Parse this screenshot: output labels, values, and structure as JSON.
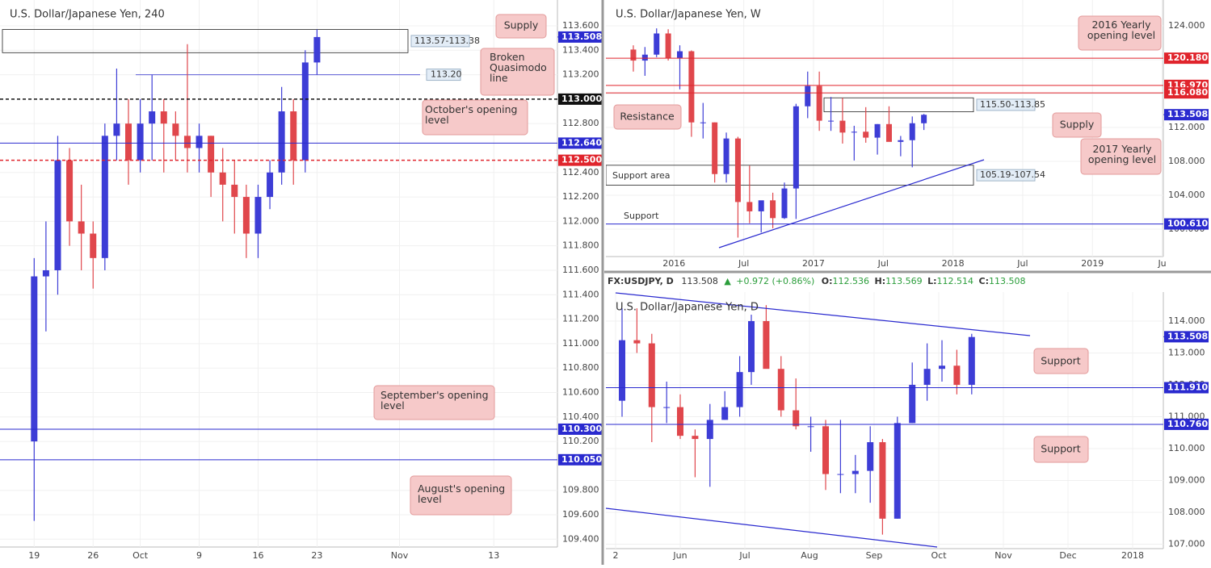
{
  "chart_data": [
    {
      "type": "candlestick",
      "title": "U.S. Dollar/Japanese Yen, 240",
      "xlim": [
        -2.9,
        44.4
      ],
      "xticks": [
        {
          "value": 0,
          "label": "19"
        },
        {
          "value": 5,
          "label": "26"
        },
        {
          "value": 9,
          "label": "Oct"
        },
        {
          "value": 14,
          "label": "9"
        },
        {
          "value": 19,
          "label": "16"
        },
        {
          "value": 24,
          "label": "23"
        },
        {
          "value": 31,
          "label": "Nov"
        },
        {
          "value": 39,
          "label": "13"
        }
      ],
      "ylim": [
        109.336,
        113.811
      ],
      "yticks": [
        {
          "value": 109.4,
          "label": "109.400"
        },
        {
          "value": 109.6,
          "label": "109.600"
        },
        {
          "value": 109.8,
          "label": "109.800"
        },
        {
          "value": 110.2,
          "label": "110.200"
        },
        {
          "value": 110.4,
          "label": "110.400"
        },
        {
          "value": 110.6,
          "label": "110.600"
        },
        {
          "value": 110.8,
          "label": "110.800"
        },
        {
          "value": 111,
          "label": "111.000"
        },
        {
          "value": 111.2,
          "label": "111.200"
        },
        {
          "value": 111.4,
          "label": "111.400"
        },
        {
          "value": 111.6,
          "label": "111.600"
        },
        {
          "value": 111.8,
          "label": "111.800"
        },
        {
          "value": 112,
          "label": "112.000"
        },
        {
          "value": 112.2,
          "label": "112.200"
        },
        {
          "value": 112.4,
          "label": "112.400"
        },
        {
          "value": 112.8,
          "label": "112.800"
        },
        {
          "value": 113.2,
          "label": "113.200"
        },
        {
          "value": 113.4,
          "label": "113.400"
        },
        {
          "value": 113.6,
          "label": "113.600"
        }
      ],
      "grid": true,
      "up_color": "#3d3dd6",
      "down_color": "#e0474c",
      "candles": {
        "x": [
          0,
          1,
          2,
          3,
          4,
          5,
          6,
          7,
          8,
          9,
          10,
          11,
          12,
          13,
          14,
          15,
          16,
          17,
          18,
          19,
          20,
          21,
          22,
          23,
          24
        ],
        "open": [
          110.2,
          111.55,
          111.6,
          112.5,
          112.0,
          111.9,
          111.7,
          112.7,
          112.8,
          112.5,
          112.8,
          112.9,
          112.8,
          112.7,
          112.6,
          112.7,
          112.4,
          112.3,
          112.2,
          111.9,
          112.2,
          112.4,
          112.9,
          112.5,
          113.3
        ],
        "high": [
          111.7,
          112.0,
          112.7,
          112.6,
          112.3,
          112.0,
          112.8,
          113.25,
          113.0,
          113.0,
          113.2,
          113.0,
          112.9,
          113.45,
          112.8,
          112.7,
          112.6,
          112.5,
          112.3,
          112.3,
          112.5,
          113.1,
          113.0,
          113.4,
          113.57
        ],
        "low": [
          109.55,
          111.1,
          111.4,
          111.8,
          111.6,
          111.45,
          111.6,
          112.5,
          112.3,
          112.4,
          112.5,
          112.4,
          112.5,
          112.4,
          112.4,
          112.2,
          112.0,
          111.9,
          111.7,
          111.7,
          112.1,
          112.3,
          112.3,
          112.4,
          113.2
        ],
        "close": [
          111.55,
          111.6,
          112.5,
          112.0,
          111.9,
          111.7,
          112.7,
          112.8,
          112.5,
          112.8,
          112.9,
          112.8,
          112.7,
          112.6,
          112.7,
          112.4,
          112.3,
          112.2,
          111.9,
          112.2,
          112.4,
          112.9,
          112.5,
          113.3,
          113.508
        ]
      },
      "levels": [
        {
          "value": 113,
          "label": "113.000",
          "color": "#111111",
          "dashed": true
        },
        {
          "value": 112.64,
          "label": "112.640",
          "color": "#2a2acf",
          "dashed": false
        },
        {
          "value": 112.5,
          "label": "112.500",
          "color": "#e0242c",
          "dashed": true
        },
        {
          "value": 110.3,
          "label": "110.300",
          "color": "#2a2acf",
          "dashed": false
        },
        {
          "value": 110.05,
          "label": "110.050",
          "color": "#2a2acf",
          "dashed": false
        }
      ],
      "current": {
        "value": 113.508,
        "label": "113.508",
        "color": "#2a2acf"
      },
      "zones": [
        {
          "low": 113.38,
          "high": 113.57,
          "label": "113.57-113.38"
        }
      ],
      "segments": [
        {
          "value": 113.2,
          "label": "113.20",
          "color": "#5b5bd6"
        }
      ],
      "annotations": [
        "Supply",
        "Broken Quasimodo line",
        "October's opening level",
        "September's opening level",
        "August's opening level"
      ]
    },
    {
      "type": "candlestick",
      "title": "U.S. Dollar/Japanese Yen, W",
      "xlim": [
        -5.86,
        42.1
      ],
      "xticks": [
        {
          "value": 0,
          "label": "2016"
        },
        {
          "value": 6,
          "label": "Jul"
        },
        {
          "value": 12,
          "label": "2017"
        },
        {
          "value": 18,
          "label": "Jul"
        },
        {
          "value": 24,
          "label": "2018"
        },
        {
          "value": 30,
          "label": "Jul"
        },
        {
          "value": 36,
          "label": "2019"
        },
        {
          "value": 42,
          "label": "Ju"
        }
      ],
      "ylim": [
        96.76,
        127.05
      ],
      "yticks": [
        {
          "value": 100,
          "label": "100.000"
        },
        {
          "value": 104,
          "label": "104.000"
        },
        {
          "value": 108,
          "label": "108.000"
        },
        {
          "value": 112,
          "label": "112.000"
        },
        {
          "value": 116,
          "label": "116.000"
        },
        {
          "value": 120,
          "label": "120.000"
        },
        {
          "value": 124,
          "label": "124.000"
        }
      ],
      "grid": true,
      "up_color": "#3d3dd6",
      "down_color": "#e0474c",
      "candles": {
        "x": [
          -3.5,
          -2.5,
          -1.5,
          -0.5,
          0.5,
          1.5,
          2.5,
          3.5,
          4.5,
          5.5,
          6.5,
          7.5,
          8.5,
          9.5,
          10.5,
          11.5,
          12.5,
          13.5,
          14.5,
          15.5,
          16.5,
          17.5,
          18.5,
          19.5,
          20.5,
          21.5
        ],
        "open": [
          121.2,
          119.9,
          120.6,
          123.1,
          120.2,
          121.0,
          112.6,
          112.6,
          106.5,
          110.7,
          103.2,
          102.1,
          103.4,
          101.3,
          104.8,
          114.5,
          116.9,
          112.8,
          112.8,
          111.4,
          111.5,
          110.8,
          112.4,
          110.3,
          110.5,
          112.5
        ],
        "high": [
          121.7,
          121.5,
          123.7,
          123.6,
          121.7,
          121.1,
          114.9,
          112.6,
          111.4,
          110.9,
          107.5,
          102.8,
          104.3,
          105.5,
          114.8,
          118.6,
          118.6,
          115.6,
          115.5,
          112.2,
          114.4,
          112.4,
          114.5,
          111.0,
          113.3,
          113.6
        ],
        "low": [
          118.6,
          118.1,
          120.3,
          119.9,
          116.5,
          110.9,
          110.7,
          105.5,
          105.5,
          99.0,
          100.7,
          99.6,
          100.1,
          101.2,
          101.2,
          113.1,
          111.6,
          111.6,
          110.1,
          108.1,
          110.2,
          108.8,
          110.6,
          108.6,
          107.3,
          111.7
        ],
        "close": [
          119.9,
          120.6,
          123.1,
          120.2,
          121.0,
          112.6,
          112.6,
          106.5,
          110.7,
          103.2,
          102.1,
          103.4,
          101.3,
          104.8,
          114.5,
          116.9,
          112.8,
          112.8,
          111.4,
          111.5,
          110.8,
          112.4,
          110.3,
          110.5,
          112.5,
          113.5
        ]
      },
      "levels": [
        {
          "value": 120.18,
          "label": "120.180",
          "color": "#e0242c",
          "dashed": false
        },
        {
          "value": 116.97,
          "label": "116.970",
          "color": "#e0242c",
          "dashed": false
        },
        {
          "value": 116.08,
          "label": "116.080",
          "color": "#e0242c",
          "dashed": false
        },
        {
          "value": 100.61,
          "label": "100.610",
          "color": "#2a2acf",
          "dashed": false
        }
      ],
      "current": {
        "value": 113.508,
        "label": "113.508",
        "color": "#2a2acf"
      },
      "zones": [
        {
          "low": 113.85,
          "high": 115.5,
          "label": "115.50-113.85"
        },
        {
          "low": 105.19,
          "high": 107.54,
          "label": "105.19-107.54"
        }
      ],
      "segments": [],
      "annotations": [
        "2016 Yearly opening level",
        "Resistance",
        "Supply",
        "2017 Yearly opening level",
        "Support area",
        "Support"
      ]
    },
    {
      "type": "candlestick",
      "title": "U.S. Dollar/Japanese Yen, D",
      "header": {
        "symbol": "FX:USDJPY, D",
        "price": "113.508",
        "arrow": "▲",
        "change": "+0.972 (+0.86%)",
        "o": "O:",
        "open": "112.536",
        "h": "H:",
        "high": "113.569",
        "l": "L:",
        "low": "112.514",
        "c": "C:",
        "close": "113.508"
      },
      "xlim": [
        -0.15,
        8.475
      ],
      "xticks": [
        {
          "value": 0,
          "label": "2"
        },
        {
          "value": 1,
          "label": "Jun"
        },
        {
          "value": 2,
          "label": "Jul"
        },
        {
          "value": 3,
          "label": "Aug"
        },
        {
          "value": 4,
          "label": "Sep"
        },
        {
          "value": 5,
          "label": "Oct"
        },
        {
          "value": 6,
          "label": "Nov"
        },
        {
          "value": 7,
          "label": "Dec"
        },
        {
          "value": 8,
          "label": "2018"
        }
      ],
      "ylim": [
        106.86,
        114.91
      ],
      "yticks": [
        {
          "value": 107,
          "label": "107.000"
        },
        {
          "value": 108,
          "label": "108.000"
        },
        {
          "value": 109,
          "label": "109.000"
        },
        {
          "value": 110,
          "label": "110.000"
        },
        {
          "value": 111,
          "label": "111.000"
        },
        {
          "value": 112,
          "label": "112.000"
        },
        {
          "value": 113,
          "label": "113.000"
        },
        {
          "value": 114,
          "label": "114.000"
        }
      ],
      "grid": true,
      "up_color": "#3d3dd6",
      "down_color": "#e0474c",
      "candles": {
        "x": [
          0.1,
          0.33,
          0.56,
          0.79,
          1.0,
          1.23,
          1.46,
          1.69,
          1.92,
          2.1,
          2.33,
          2.56,
          2.79,
          3.02,
          3.25,
          3.48,
          3.71,
          3.94,
          4.13,
          4.36,
          4.59,
          4.82,
          5.05,
          5.28,
          5.51
        ],
        "open": [
          111.5,
          113.4,
          113.3,
          111.3,
          111.3,
          110.4,
          110.3,
          110.9,
          111.3,
          112.4,
          114.0,
          112.5,
          111.2,
          110.7,
          110.7,
          109.2,
          109.2,
          109.3,
          110.2,
          107.8,
          110.8,
          112.0,
          112.5,
          112.6,
          112.0
        ],
        "high": [
          114.4,
          114.4,
          113.6,
          112.1,
          111.7,
          110.6,
          111.4,
          111.8,
          112.9,
          114.2,
          114.5,
          112.9,
          112.2,
          111.0,
          110.9,
          110.9,
          109.8,
          110.7,
          110.3,
          111.0,
          112.7,
          113.3,
          113.4,
          113.1,
          113.6
        ],
        "low": [
          111.0,
          113.0,
          110.2,
          110.8,
          110.3,
          109.1,
          108.8,
          110.9,
          111.0,
          112.0,
          112.7,
          111.0,
          110.6,
          109.9,
          108.7,
          108.6,
          108.6,
          108.3,
          107.3,
          107.8,
          110.8,
          111.5,
          112.1,
          111.7,
          111.7
        ],
        "close": [
          113.4,
          113.3,
          111.3,
          111.3,
          110.4,
          110.3,
          110.9,
          111.3,
          112.4,
          114.0,
          112.5,
          111.2,
          110.7,
          110.7,
          109.2,
          109.2,
          109.3,
          110.2,
          107.8,
          110.8,
          112.0,
          112.5,
          112.6,
          112.0,
          113.5
        ]
      },
      "levels": [
        {
          "value": 111.91,
          "label": "111.910",
          "color": "#2a2acf",
          "dashed": false
        },
        {
          "value": 110.76,
          "label": "110.760",
          "color": "#2a2acf",
          "dashed": false
        }
      ],
      "current": {
        "value": 113.508,
        "label": "113.508",
        "color": "#2a2acf"
      },
      "zones": [],
      "segments": [],
      "annotations": [
        "Support",
        "Support"
      ]
    }
  ]
}
